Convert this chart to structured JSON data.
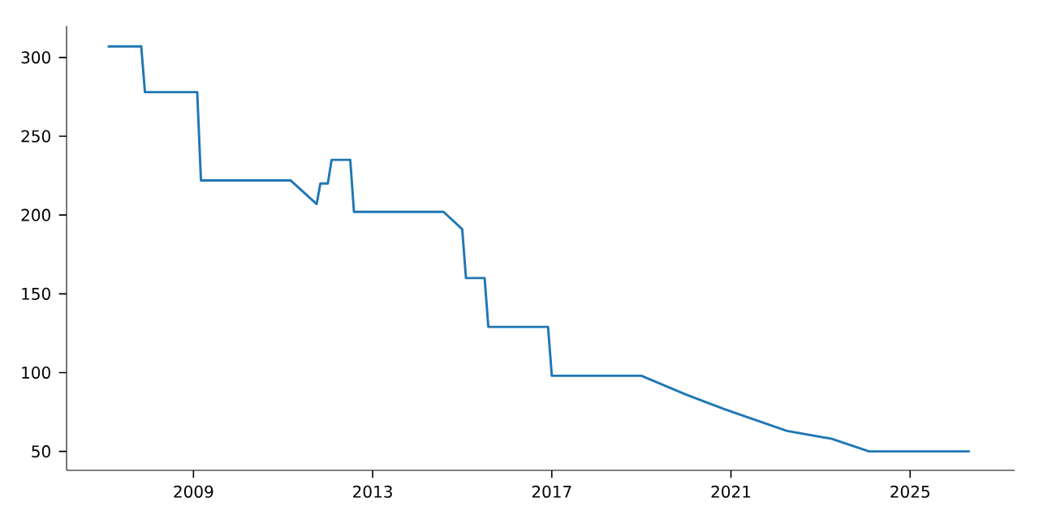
{
  "chart_data": {
    "type": "line",
    "color": "#1f77b4",
    "x": [
      "2007-02",
      "2007-11",
      "2007-12",
      "2009-02",
      "2009-03",
      "2011-03",
      "2011-10",
      "2011-11",
      "2012-01",
      "2012-02",
      "2012-07",
      "2012-08",
      "2014-08",
      "2015-01",
      "2015-02",
      "2015-07",
      "2015-08",
      "2016-12",
      "2017-01",
      "2019-01",
      "2020-01",
      "2020-11",
      "2022-04",
      "2023-04",
      "2024-02",
      "2026-05"
    ],
    "values": [
      307,
      307,
      278,
      278,
      222,
      222,
      207,
      220,
      220,
      235,
      235,
      202,
      202,
      191,
      160,
      160,
      129,
      129,
      98,
      98,
      86,
      77,
      63,
      58,
      50,
      50
    ],
    "xlim": [
      "2006-03",
      "2027-05"
    ],
    "ylim": [
      38,
      320
    ],
    "xticks": [
      "2009",
      "2013",
      "2017",
      "2021",
      "2025"
    ],
    "yticks": [
      50,
      100,
      150,
      200,
      250,
      300
    ],
    "grid": false,
    "marker": "none",
    "line_style": "solid"
  }
}
